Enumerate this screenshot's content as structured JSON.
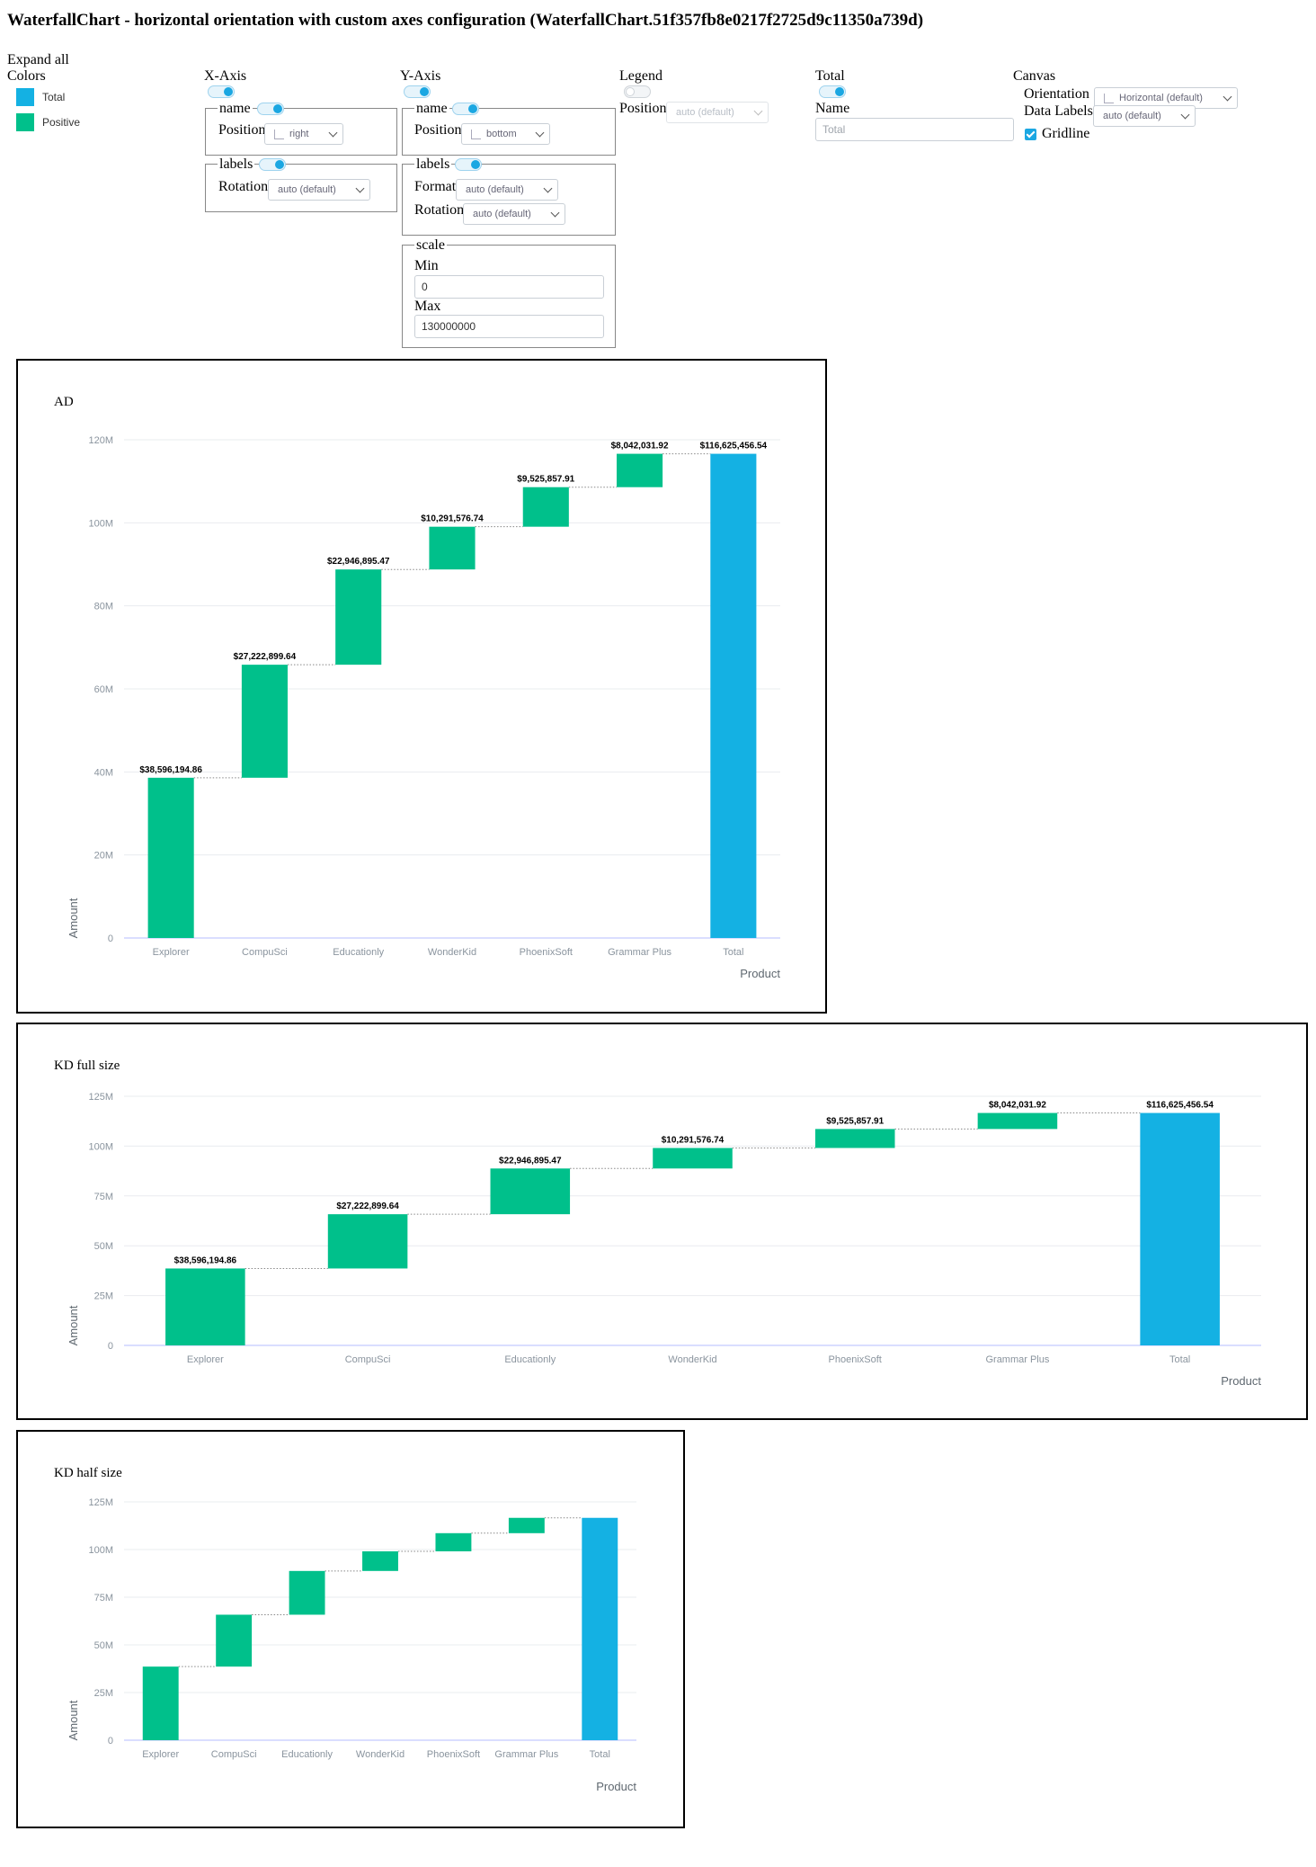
{
  "page": {
    "title": "WaterfallChart - horizontal orientation with custom axes configuration (WaterfallChart.51f357fb8e0217f2725d9c11350a739d)"
  },
  "controls": {
    "expand_all": "Expand all",
    "colors": {
      "label": "Colors",
      "items": [
        {
          "name": "Total",
          "color": "#14b1e3"
        },
        {
          "name": "Positive",
          "color": "#00c08b"
        }
      ]
    },
    "x_axis": {
      "label": "X-Axis",
      "enabled": true,
      "name_legend": "name",
      "name_enabled": true,
      "position_label": "Position",
      "position_value": "right",
      "labels_legend": "labels",
      "labels_enabled": true,
      "rotation_label": "Rotation",
      "rotation_value": "auto (default)"
    },
    "y_axis": {
      "label": "Y-Axis",
      "enabled": true,
      "name_legend": "name",
      "name_enabled": true,
      "position_label": "Position",
      "position_value": "bottom",
      "labels_legend": "labels",
      "labels_enabled": true,
      "format_label": "Format",
      "format_value": "auto (default)",
      "rotation_label": "Rotation",
      "rotation_value": "auto (default)",
      "scale_legend": "scale",
      "min_label": "Min",
      "min_value": "0",
      "max_label": "Max",
      "max_value": "130000000"
    },
    "legend": {
      "label": "Legend",
      "enabled": false,
      "position_label": "Position",
      "position_value": "auto (default)"
    },
    "total": {
      "label": "Total",
      "enabled": true,
      "name_label": "Name",
      "name_placeholder": "Total"
    },
    "canvas": {
      "label": "Canvas",
      "orientation_label": "Orientation",
      "orientation_value": "Horizontal (default)",
      "data_labels_label": "Data Labels",
      "data_labels_value": "auto (default)",
      "gridline_label": "Gridline",
      "gridline_checked": true
    }
  },
  "chart_data": [
    {
      "panel_title": "AD",
      "type": "bar",
      "categories": [
        "Explorer",
        "CompuSci",
        "Educationly",
        "WonderKid",
        "PhoenixSoft",
        "Grammar Plus",
        "Total"
      ],
      "values": [
        38596194.86,
        27222899.64,
        22946895.47,
        10291576.74,
        9525857.91,
        8042031.92,
        116625456.54
      ],
      "kinds": [
        "positive",
        "positive",
        "positive",
        "positive",
        "positive",
        "positive",
        "total"
      ],
      "data_labels": [
        "$38,596,194.86",
        "$27,222,899.64",
        "$22,946,895.47",
        "$10,291,576.74",
        "$9,525,857.91",
        "$8,042,031.92",
        "$116,625,456.54"
      ],
      "show_data_labels": true,
      "xlabel": "Product",
      "ylabel": "Amount",
      "ylim": [
        0,
        120000000
      ],
      "yticks": [
        0,
        20000000,
        40000000,
        60000000,
        80000000,
        100000000,
        120000000
      ],
      "ytick_labels": [
        "0",
        "20M",
        "40M",
        "60M",
        "80M",
        "100M",
        "120M"
      ],
      "grid": true
    },
    {
      "panel_title": "KD full size",
      "type": "bar",
      "categories": [
        "Explorer",
        "CompuSci",
        "Educationly",
        "WonderKid",
        "PhoenixSoft",
        "Grammar Plus",
        "Total"
      ],
      "values": [
        38596194.86,
        27222899.64,
        22946895.47,
        10291576.74,
        9525857.91,
        8042031.92,
        116625456.54
      ],
      "kinds": [
        "positive",
        "positive",
        "positive",
        "positive",
        "positive",
        "positive",
        "total"
      ],
      "data_labels": [
        "$38,596,194.86",
        "$27,222,899.64",
        "$22,946,895.47",
        "$10,291,576.74",
        "$9,525,857.91",
        "$8,042,031.92",
        "$116,625,456.54"
      ],
      "show_data_labels": true,
      "xlabel": "Product",
      "ylabel": "Amount",
      "ylim": [
        0,
        125000000
      ],
      "yticks": [
        0,
        25000000,
        50000000,
        75000000,
        100000000,
        125000000
      ],
      "ytick_labels": [
        "0",
        "25M",
        "50M",
        "75M",
        "100M",
        "125M"
      ],
      "grid": true
    },
    {
      "panel_title": "KD half size",
      "type": "bar",
      "categories": [
        "Explorer",
        "CompuSci",
        "Educationly",
        "WonderKid",
        "PhoenixSoft",
        "Grammar Plus",
        "Total"
      ],
      "values": [
        38596194.86,
        27222899.64,
        22946895.47,
        10291576.74,
        9525857.91,
        8042031.92,
        116625456.54
      ],
      "kinds": [
        "positive",
        "positive",
        "positive",
        "positive",
        "positive",
        "positive",
        "total"
      ],
      "data_labels": [],
      "show_data_labels": false,
      "xlabel": "Product",
      "ylabel": "Amount",
      "ylim": [
        0,
        125000000
      ],
      "yticks": [
        0,
        25000000,
        50000000,
        75000000,
        100000000,
        125000000
      ],
      "ytick_labels": [
        "0",
        "25M",
        "50M",
        "75M",
        "100M",
        "125M"
      ],
      "grid": true
    }
  ]
}
